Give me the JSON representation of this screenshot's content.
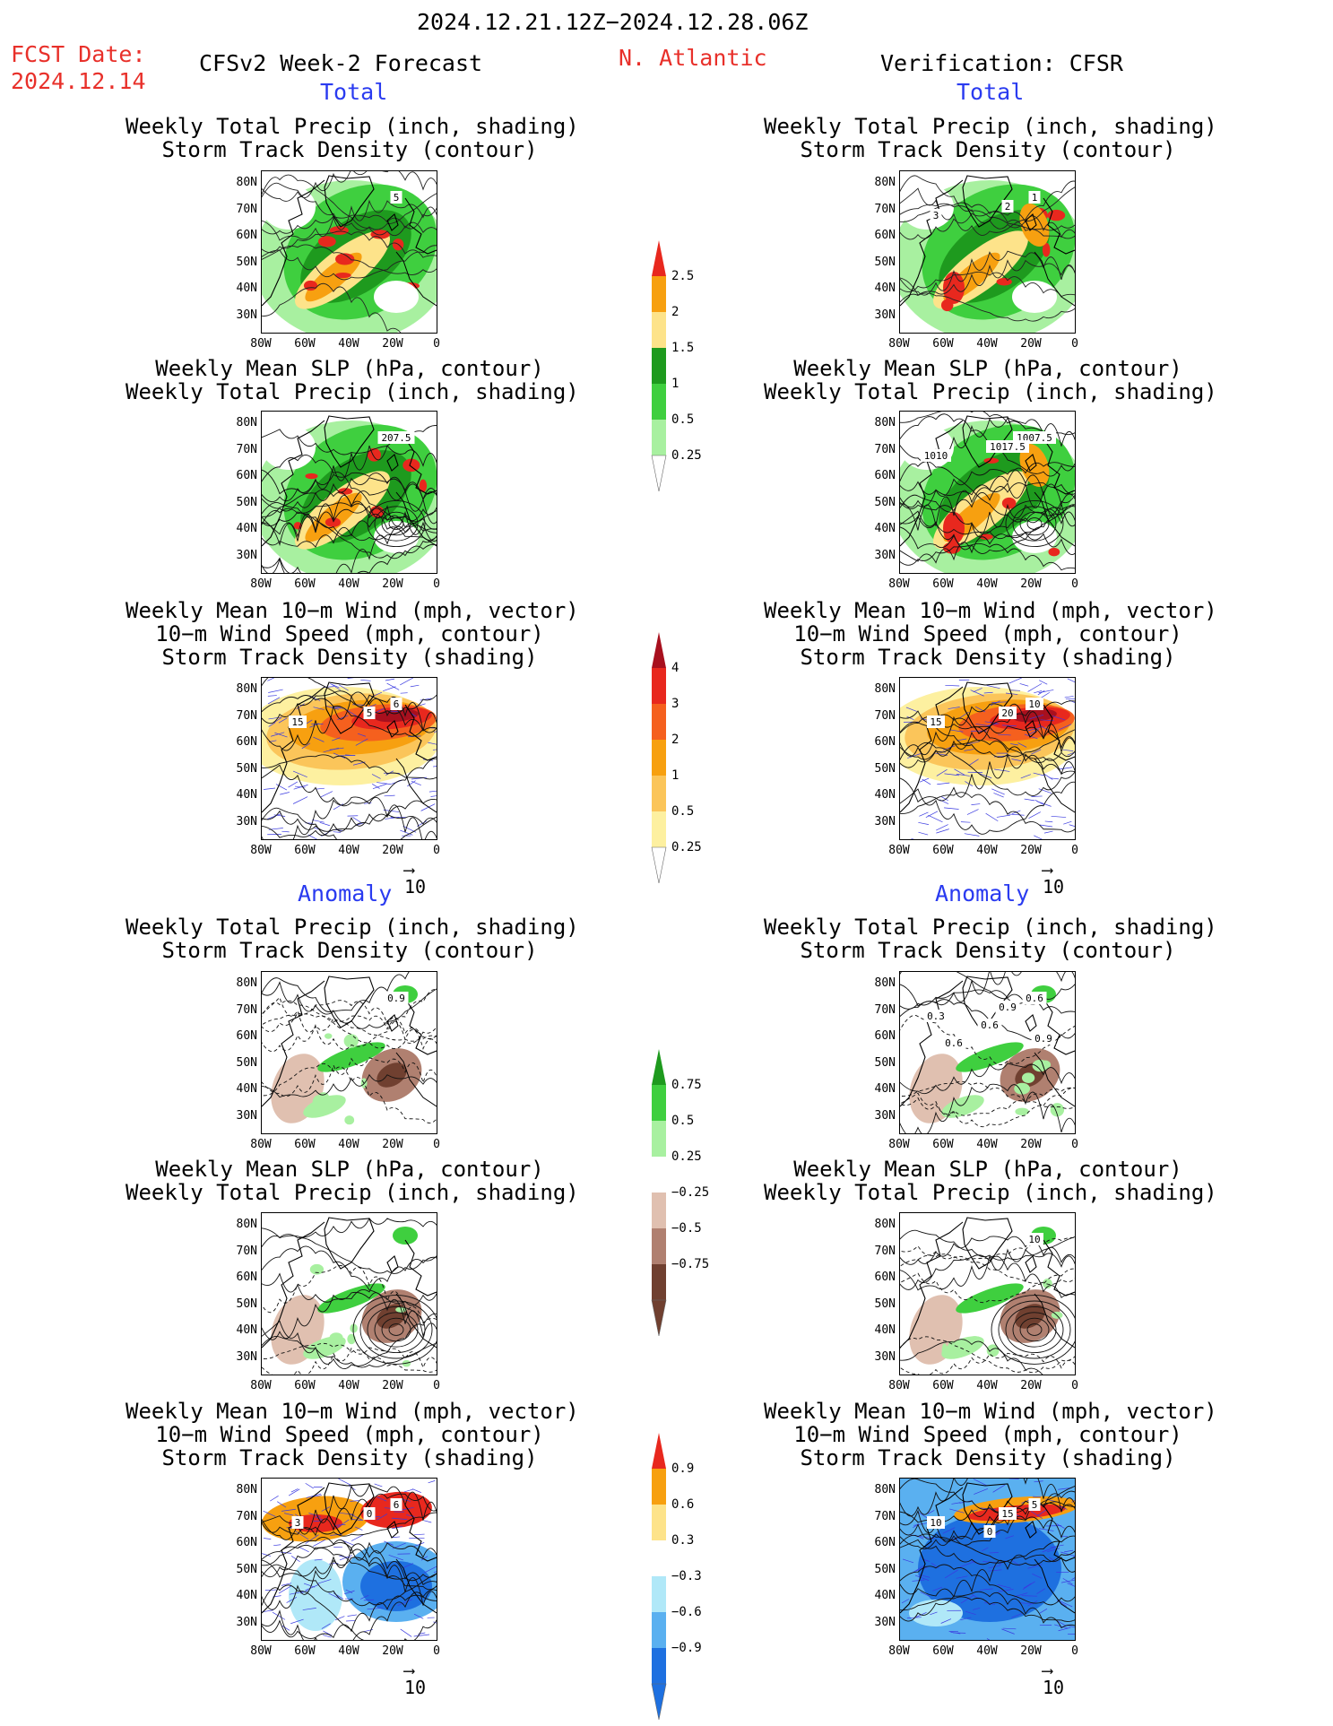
{
  "header": {
    "date_range": "2024.12.21.12Z−2024.12.28.06Z",
    "fcst_label": "FCST Date:",
    "fcst_date": "2024.12.14",
    "left_model": "CFSv2 Week-2 Forecast",
    "region": "N. Atlantic",
    "right_model": "Verification: CFSR"
  },
  "section_labels": {
    "total": "Total",
    "anomaly": "Anomaly"
  },
  "panel_titles": {
    "precip_storm": [
      "Weekly Total Precip (inch, shading)",
      "Storm Track Density (contour)"
    ],
    "slp_precip": [
      "Weekly Mean SLP (hPa, contour)",
      "Weekly Total Precip (inch, shading)"
    ],
    "wind_storm": [
      "Weekly Mean 10−m Wind (mph, vector)",
      "10−m Wind Speed (mph, contour)",
      "Storm Track Density (shading)"
    ]
  },
  "axes": {
    "lat_ticks": [
      "80N",
      "70N",
      "60N",
      "50N",
      "40N",
      "30N"
    ],
    "lon_ticks": [
      "80W",
      "60W",
      "40W",
      "20W",
      "0"
    ]
  },
  "vector_reference": "10",
  "colorbars": {
    "precip_total": {
      "labels": [
        "2.5",
        "2",
        "1.5",
        "1",
        "0.5",
        "0.25"
      ],
      "colors": [
        "#e8281e",
        "#f7a010",
        "#fde38a",
        "#1e9a1e",
        "#3fcf3f",
        "#a8f0a0"
      ]
    },
    "storm_total": {
      "labels": [
        "4",
        "3",
        "2",
        "1",
        "0.5",
        "0.25"
      ],
      "colors": [
        "#a8101e",
        "#e8281e",
        "#f5601e",
        "#f7a010",
        "#fbc55a",
        "#fdf0a0"
      ]
    },
    "precip_anom": {
      "labels": [
        "0.75",
        "0.5",
        "0.25",
        "−0.25",
        "−0.5",
        "−0.75"
      ],
      "colors": [
        "#1e9a1e",
        "#3fcf3f",
        "#a8f0a0",
        "#ffffff",
        "#e0c0b0",
        "#b08070",
        "#704030"
      ]
    },
    "storm_anom": {
      "labels": [
        "0.9",
        "0.6",
        "0.3",
        "−0.3",
        "−0.6",
        "−0.9"
      ],
      "colors": [
        "#e8281e",
        "#f7a010",
        "#fde38a",
        "#ffffff",
        "#b0e8f8",
        "#5ab0f0",
        "#1e70e0"
      ]
    }
  },
  "contour_labels": {
    "r0c0": [
      "5"
    ],
    "r0c1": [
      "1",
      "3",
      "2"
    ],
    "r1c0": [
      "207.5"
    ],
    "r1c1": [
      "1007.5",
      "1010",
      "1017.5"
    ],
    "r2c0": [
      "6",
      "15",
      "5"
    ],
    "r2c1": [
      "10",
      "15",
      "20"
    ],
    "r3c0": [
      "0.9"
    ],
    "r3c1": [
      "0.6",
      "0.3",
      "0.9",
      "0.6",
      "0.6",
      "0.9"
    ],
    "r4c0": [],
    "r4c1": [
      "10"
    ],
    "r5c0": [
      "6",
      "3",
      "0"
    ],
    "r5c1": [
      "5",
      "10",
      "15",
      "0"
    ]
  }
}
